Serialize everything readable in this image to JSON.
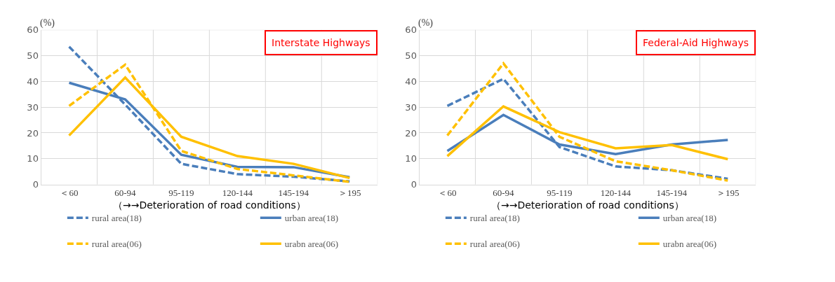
{
  "chart_data": [
    {
      "type": "line",
      "title": "Interstate Highways",
      "ylabel": "(%)",
      "xlabel": "（→→Deterioration of road conditions）",
      "categories": [
        "＜60",
        "60-94",
        "95-119",
        "120-144",
        "145-194",
        "＞195"
      ],
      "ylim": [
        0,
        60
      ],
      "yticks": [
        0,
        10,
        20,
        30,
        40,
        50,
        60
      ],
      "grid": true,
      "legend": "bottom",
      "marker": "none",
      "series": [
        {
          "name": "rural area(18)",
          "color": "#4a7ebb",
          "line_style": "dashed",
          "values": [
            53.5,
            31,
            8,
            4,
            3,
            1.2
          ]
        },
        {
          "name": "urban area(18)",
          "color": "#4a7ebb",
          "line_style": "solid",
          "values": [
            39.5,
            33,
            11.5,
            6.8,
            6.7,
            2.8
          ]
        },
        {
          "name": "rural area(06)",
          "color": "#ffc000",
          "line_style": "dashed",
          "values": [
            30.5,
            46.5,
            13,
            6,
            3.5,
            1
          ]
        },
        {
          "name": "urabn area(06)",
          "color": "#ffc000",
          "line_style": "solid",
          "values": [
            19,
            41.5,
            18.5,
            11,
            8,
            2.5
          ]
        }
      ]
    },
    {
      "type": "line",
      "title": "Federal-Aid Highways",
      "ylabel": "(%)",
      "xlabel": "（→→Deterioration of road conditions）",
      "categories": [
        "＜60",
        "60-94",
        "95-119",
        "120-144",
        "145-194",
        "＞195"
      ],
      "ylim": [
        0,
        60
      ],
      "yticks": [
        0,
        10,
        20,
        30,
        40,
        50,
        60
      ],
      "grid": true,
      "legend": "bottom",
      "marker": "none",
      "series": [
        {
          "name": "rural area(18)",
          "color": "#4a7ebb",
          "line_style": "dashed",
          "values": [
            30.5,
            41,
            14.5,
            7,
            5.5,
            2.2
          ]
        },
        {
          "name": "urban area(18)",
          "color": "#4a7ebb",
          "line_style": "solid",
          "values": [
            13,
            27,
            15.5,
            11.8,
            15.5,
            17.3
          ]
        },
        {
          "name": "rural area(06)",
          "color": "#ffc000",
          "line_style": "dashed",
          "values": [
            19,
            47,
            18.5,
            9,
            5.5,
            1.5
          ]
        },
        {
          "name": "urabn area(06)",
          "color": "#ffc000",
          "line_style": "solid",
          "values": [
            11,
            30.3,
            20.3,
            14,
            15.3,
            9.8
          ]
        }
      ]
    }
  ]
}
